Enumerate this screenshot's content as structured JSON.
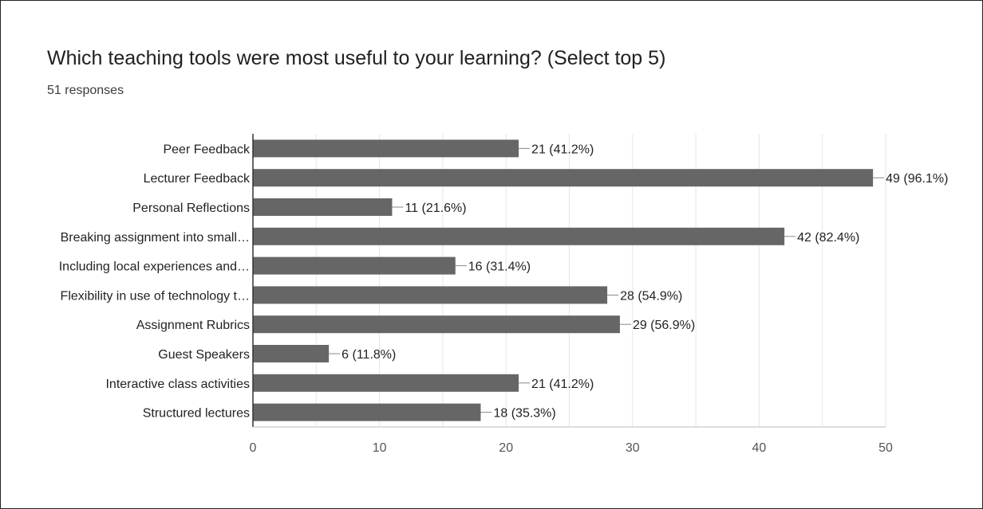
{
  "question": {
    "title": "Which teaching tools were most useful to your learning? (Select top 5)",
    "responses": "51 responses"
  },
  "chart_data": {
    "type": "bar",
    "orientation": "horizontal",
    "title": "Which teaching tools were most useful to your learning? (Select top 5)",
    "subtitle": "51 responses",
    "categories": [
      "Peer Feedback",
      "Lecturer Feedback",
      "Personal Reflections",
      "Breaking assignment into small…",
      "Including local experiences and…",
      "Flexibility in use of technology t…",
      "Assignment Rubrics",
      "Guest Speakers",
      "Interactive class activities",
      "Structured lectures"
    ],
    "values": [
      21,
      49,
      11,
      42,
      16,
      28,
      29,
      6,
      21,
      18
    ],
    "data_labels": [
      "21 (41.2%)",
      "49 (96.1%)",
      "11 (21.6%)",
      "42 (82.4%)",
      "16 (31.4%)",
      "28 (54.9%)",
      "29 (56.9%)",
      "6 (11.8%)",
      "21 (41.2%)",
      "18 (35.3%)"
    ],
    "xticks": [
      "0",
      "10",
      "20",
      "30",
      "40",
      "50"
    ],
    "xlim": [
      0,
      50
    ],
    "grid": true,
    "bar_color": "#666666",
    "grid_color": "#e6e6e6",
    "axis_color": "#333333"
  }
}
